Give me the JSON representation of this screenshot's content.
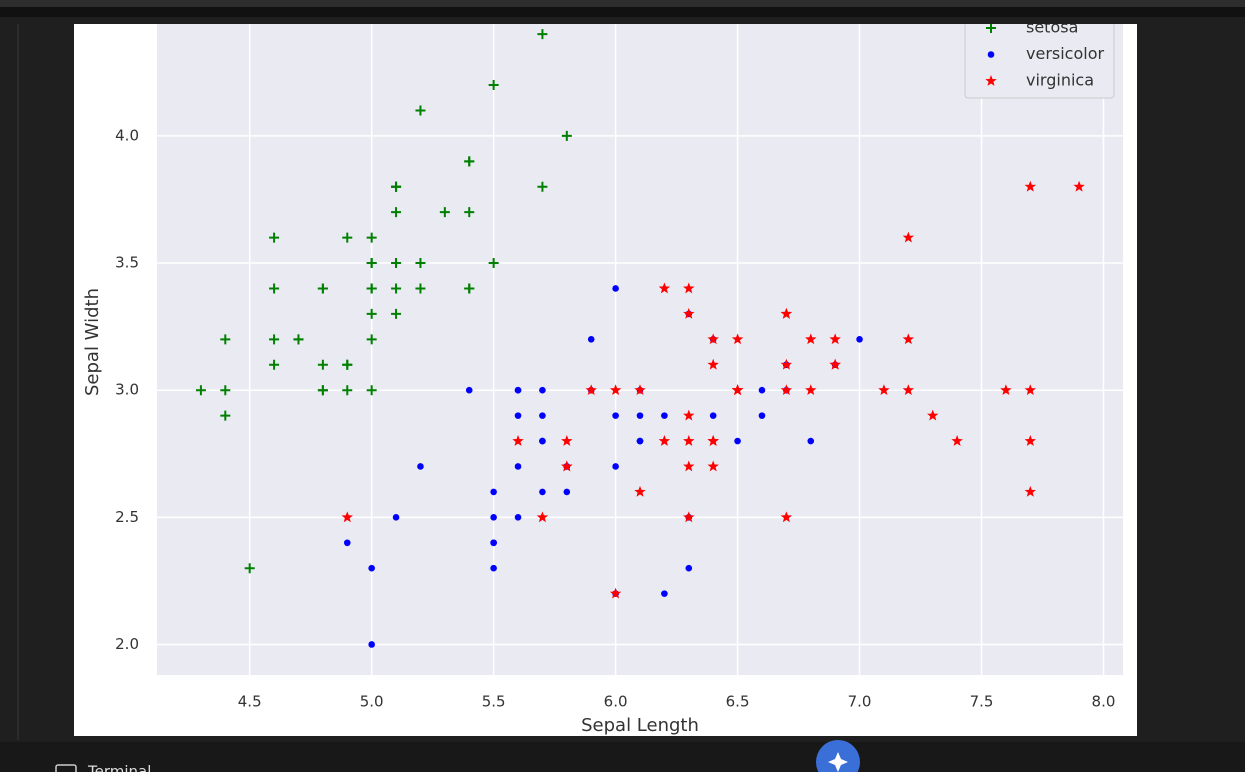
{
  "chart_data": {
    "type": "scatter",
    "xlabel": "Sepal Length",
    "ylabel": "Sepal Width",
    "xlim": [
      4.12,
      8.08
    ],
    "ylim": [
      1.88,
      4.44
    ],
    "xticks": [
      4.5,
      {
        "value": 5,
        "label": "5.0"
      },
      5.5,
      {
        "value": 6,
        "label": "6.0"
      },
      6.5,
      {
        "value": 7,
        "label": "7.0"
      },
      7.5,
      {
        "value": 8,
        "label": "8.0"
      }
    ],
    "yticks": [
      {
        "value": 2,
        "label": "2.0"
      },
      2.5,
      {
        "value": 3,
        "label": "3.0"
      },
      3.5,
      {
        "value": 4,
        "label": "4.0"
      }
    ],
    "grid": true,
    "legend": "upper right",
    "series": [
      {
        "name": "setosa",
        "color": "#008000",
        "marker": "+",
        "x": [
          5.1,
          4.9,
          4.7,
          4.6,
          5.0,
          5.4,
          4.6,
          5.0,
          4.4,
          4.9,
          5.4,
          4.8,
          4.8,
          4.3,
          5.8,
          5.7,
          5.4,
          5.1,
          5.7,
          5.1,
          5.4,
          5.1,
          4.6,
          5.1,
          4.8,
          5.0,
          5.0,
          5.2,
          5.2,
          4.7,
          4.8,
          5.4,
          5.2,
          5.5,
          4.9,
          5.0,
          5.5,
          4.9,
          4.4,
          5.1,
          5.0,
          4.5,
          4.4,
          5.0,
          5.1,
          4.8,
          5.1,
          4.6,
          5.3,
          5.0
        ],
        "values": [
          3.5,
          3.0,
          3.2,
          3.1,
          3.6,
          3.9,
          3.4,
          3.4,
          2.9,
          3.1,
          3.7,
          3.4,
          3.0,
          3.0,
          4.0,
          4.4,
          3.9,
          3.5,
          3.8,
          3.8,
          3.4,
          3.7,
          3.6,
          3.3,
          3.4,
          3.0,
          3.4,
          3.5,
          3.4,
          3.2,
          3.1,
          3.4,
          4.1,
          4.2,
          3.1,
          3.2,
          3.5,
          3.6,
          3.0,
          3.4,
          3.5,
          2.3,
          3.2,
          3.5,
          3.8,
          3.0,
          3.8,
          3.2,
          3.7,
          3.3
        ]
      },
      {
        "name": "versicolor",
        "color": "#0000ff",
        "marker": "o",
        "x": [
          7.0,
          6.4,
          6.9,
          5.5,
          6.5,
          5.7,
          6.3,
          4.9,
          6.6,
          5.2,
          5.0,
          5.9,
          6.0,
          6.1,
          5.6,
          6.7,
          5.6,
          5.8,
          6.2,
          5.6,
          5.9,
          6.1,
          6.3,
          6.1,
          6.4,
          6.6,
          6.8,
          6.7,
          6.0,
          5.7,
          5.5,
          5.5,
          5.8,
          6.0,
          5.4,
          6.0,
          6.7,
          6.3,
          5.6,
          5.5,
          5.5,
          6.1,
          5.8,
          5.0,
          5.6,
          5.7,
          5.7,
          6.2,
          5.1,
          5.7
        ],
        "values": [
          3.2,
          3.2,
          3.1,
          2.3,
          2.8,
          2.8,
          3.3,
          2.4,
          2.9,
          2.7,
          2.0,
          3.0,
          2.2,
          2.9,
          2.9,
          3.1,
          3.0,
          2.7,
          2.2,
          2.5,
          3.2,
          2.8,
          2.5,
          2.8,
          2.9,
          3.0,
          2.8,
          3.0,
          2.9,
          2.6,
          2.4,
          2.4,
          2.7,
          2.7,
          3.0,
          3.4,
          3.1,
          2.3,
          3.0,
          2.5,
          2.6,
          3.0,
          2.6,
          2.3,
          2.7,
          3.0,
          2.9,
          2.9,
          2.5,
          2.8
        ]
      },
      {
        "name": "virginica",
        "color": "#ff0000",
        "marker": "*",
        "x": [
          6.3,
          5.8,
          7.1,
          6.3,
          6.5,
          7.6,
          4.9,
          7.3,
          6.7,
          7.2,
          6.5,
          6.4,
          6.8,
          5.7,
          5.8,
          6.4,
          6.5,
          7.7,
          7.7,
          6.0,
          6.9,
          5.6,
          7.7,
          6.3,
          6.7,
          7.2,
          6.2,
          6.1,
          6.4,
          7.2,
          7.4,
          7.9,
          6.4,
          6.3,
          6.1,
          7.7,
          6.3,
          6.4,
          6.0,
          6.9,
          6.7,
          6.9,
          5.8,
          6.8,
          6.7,
          6.7,
          6.3,
          6.5,
          6.2,
          5.9
        ],
        "values": [
          3.3,
          2.7,
          3.0,
          2.9,
          3.0,
          3.0,
          2.5,
          2.9,
          2.5,
          3.6,
          3.2,
          2.7,
          3.0,
          2.5,
          2.8,
          3.2,
          3.0,
          3.8,
          2.6,
          2.2,
          3.2,
          2.8,
          2.8,
          2.7,
          3.3,
          3.2,
          2.8,
          3.0,
          2.8,
          3.0,
          2.8,
          3.8,
          2.8,
          2.8,
          2.6,
          3.0,
          3.4,
          3.1,
          3.0,
          3.1,
          3.1,
          3.1,
          2.7,
          3.2,
          3.3,
          3.0,
          2.5,
          3.0,
          3.4,
          3.0
        ]
      }
    ]
  },
  "ui": {
    "panel_tab": "Terminal"
  }
}
